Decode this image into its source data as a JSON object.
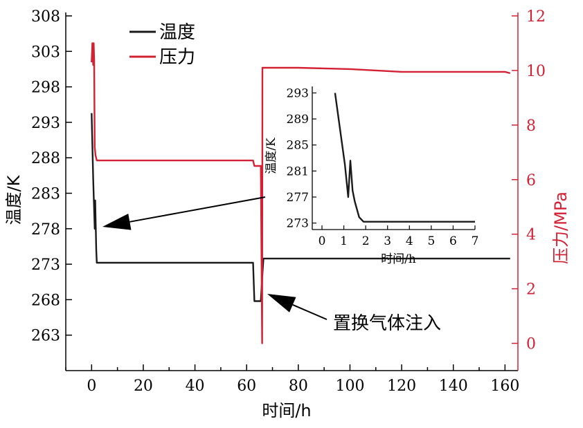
{
  "colors": {
    "temperature": "#1a1a1a",
    "pressure": "#d42033",
    "axis": "#000000"
  },
  "chart_data": [
    {
      "type": "line",
      "xlabel": "时间/h",
      "ylabel_left": "温度/K",
      "ylabel_right": "压力/MPa",
      "xlim": [
        -10,
        165
      ],
      "ylim_left": [
        258,
        308
      ],
      "ylim_right": [
        -1,
        12
      ],
      "x_ticks": [
        0,
        20,
        40,
        60,
        80,
        100,
        120,
        140,
        160
      ],
      "y_left_ticks": [
        263,
        268,
        273,
        278,
        283,
        288,
        293,
        298,
        303,
        308
      ],
      "y_right_ticks": [
        0,
        2,
        4,
        6,
        8,
        10,
        12
      ],
      "legend": {
        "position": "top-left",
        "entries": [
          "温度",
          "压力"
        ]
      },
      "series": [
        {
          "name": "温度",
          "axis": "left",
          "x": [
            0,
            0.6,
            1.2,
            1.4,
            1.8,
            2.0,
            5,
            20,
            40,
            60,
            62.5,
            63,
            63.5,
            65.5,
            66.0,
            66.5,
            80,
            100,
            120,
            140,
            162
          ],
          "y": [
            294.3,
            285,
            278,
            282,
            275,
            273.2,
            273.2,
            273.2,
            273.2,
            273.2,
            273.2,
            267.8,
            267.8,
            267.8,
            271,
            273.8,
            273.8,
            273.8,
            273.8,
            273.8,
            273.8
          ]
        },
        {
          "name": "压力",
          "axis": "right",
          "x": [
            0,
            0.3,
            0.6,
            0.8,
            1.0,
            1.2,
            1.5,
            2,
            10,
            30,
            50,
            62,
            62.5,
            63,
            64,
            65.5,
            66.0,
            66.1,
            66.3,
            80,
            100,
            110,
            120,
            140,
            160,
            162
          ],
          "y": [
            10.3,
            11,
            10.2,
            11.0,
            10.4,
            7.2,
            6.9,
            6.7,
            6.7,
            6.7,
            6.7,
            6.7,
            6.7,
            6.5,
            6.5,
            6.5,
            0.0,
            10.1,
            10.1,
            10.1,
            10.05,
            10.0,
            9.95,
            9.95,
            9.95,
            9.9
          ]
        }
      ],
      "annotations": [
        {
          "text": "置换气体注入",
          "points_to": [
            66,
            267.5
          ]
        }
      ]
    },
    {
      "type": "line",
      "inset": true,
      "xlabel": "时间/h",
      "ylabel": "温度/K",
      "xlim": [
        0,
        7
      ],
      "ylim": [
        272,
        294
      ],
      "x_ticks": [
        0,
        1,
        2,
        3,
        4,
        5,
        6,
        7
      ],
      "y_ticks": [
        273,
        277,
        281,
        285,
        289,
        293
      ],
      "series": [
        {
          "name": "温度",
          "x": [
            0.6,
            1.05,
            1.2,
            1.3,
            1.4,
            1.5,
            1.7,
            1.9,
            2.5,
            4,
            5.5,
            7
          ],
          "y": [
            293.0,
            282.0,
            277.0,
            282.6,
            278.0,
            276.3,
            273.9,
            273.2,
            273.2,
            273.2,
            273.2,
            273.2
          ]
        }
      ]
    }
  ]
}
